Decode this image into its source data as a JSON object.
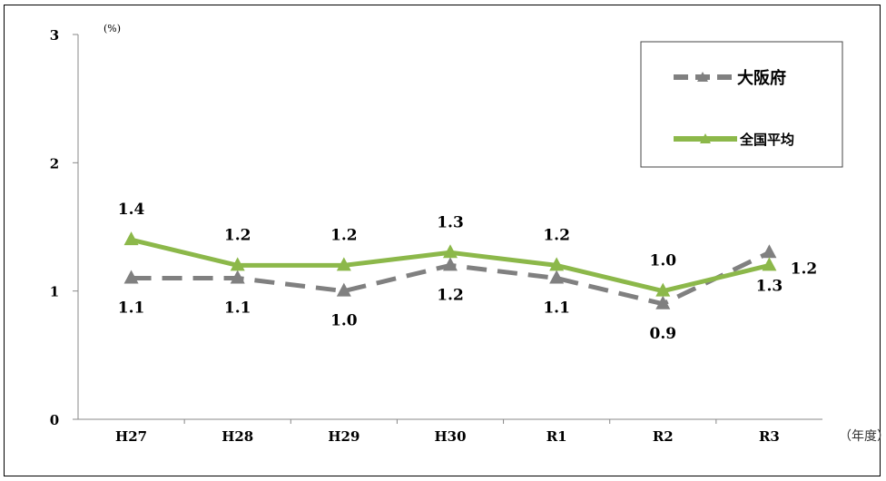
{
  "chart_data": {
    "type": "line",
    "categories": [
      "H27",
      "H28",
      "H29",
      "H30",
      "R1",
      "R2",
      "R3"
    ],
    "series": [
      {
        "name": "大阪府",
        "values": [
          1.1,
          1.1,
          1.0,
          1.2,
          1.1,
          0.9,
          1.3
        ],
        "color": "#808080",
        "style": "dashed",
        "marker": "triangle"
      },
      {
        "name": "全国平均",
        "values": [
          1.4,
          1.2,
          1.2,
          1.3,
          1.2,
          1.0,
          1.2
        ],
        "color": "#8CB84A",
        "style": "solid",
        "marker": "triangle"
      }
    ],
    "yticks": [
      "0",
      "1",
      "2",
      "3"
    ],
    "ylim": [
      0,
      3
    ],
    "yunit": "(%)",
    "xunit": "（年度）",
    "grid": false,
    "legend_position": "top-right"
  }
}
